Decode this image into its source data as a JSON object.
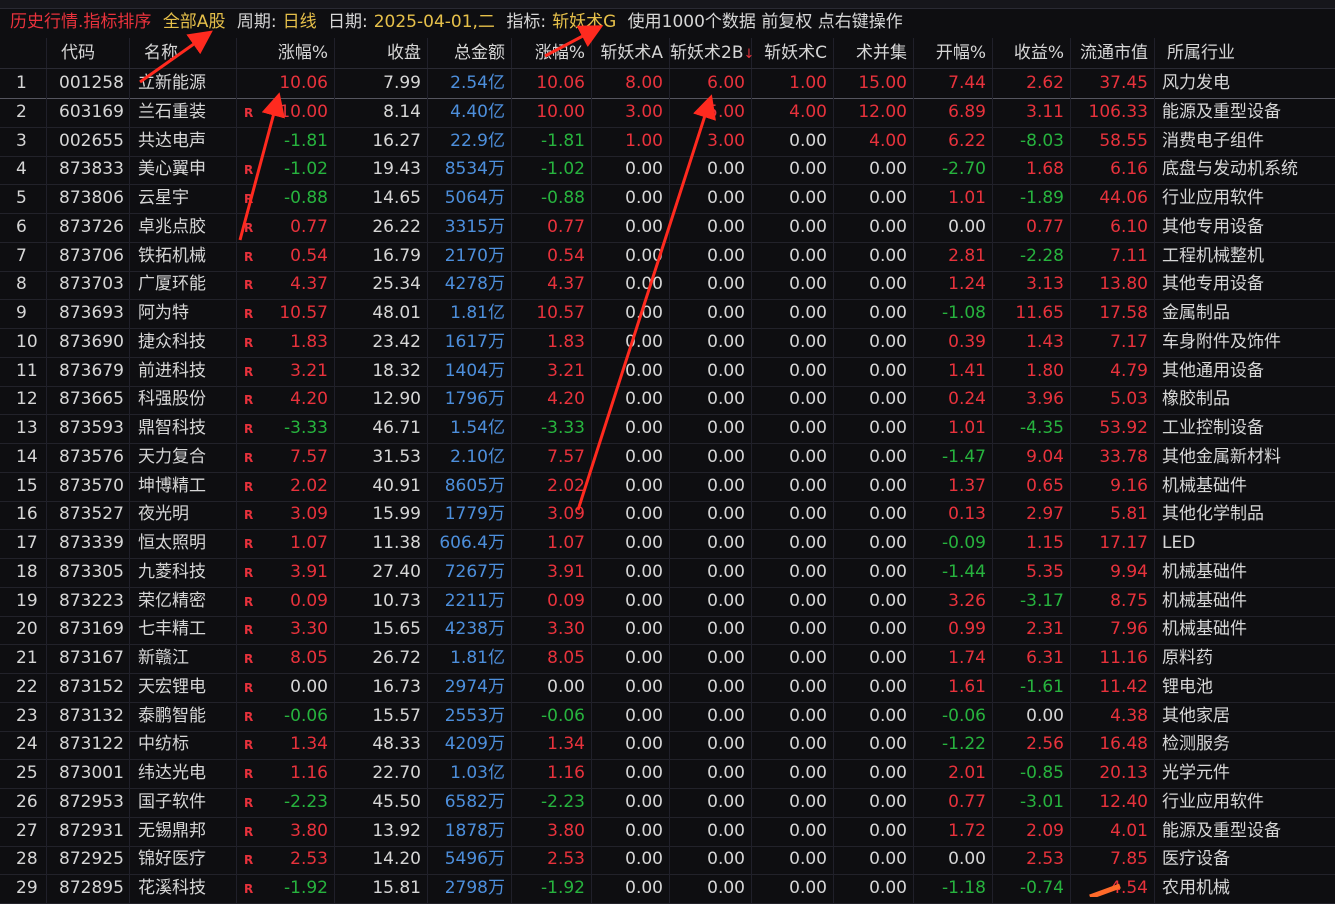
{
  "titlebar": {
    "mode": "历史行情.指标排序",
    "market": "全部A股",
    "period_label": "周期:",
    "period": "日线",
    "date_label": "日期:",
    "date": "2025-04-01,二",
    "indicator_label": "指标:",
    "indicator": "斩妖术G",
    "info": "使用1000个数据 前复权 点右键操作"
  },
  "colors": {
    "up": "#e8323c",
    "down": "#27b33e",
    "flat": "#d6d6d6",
    "amount": "#4d8fdc",
    "highlight": "#e6c04a",
    "annotation": "#ff2a1f"
  },
  "columns": [
    "",
    "代码",
    "名称",
    "涨幅%",
    "收盘",
    "总金额",
    "涨幅%",
    "斩妖术A",
    "斩妖术2B",
    "斩妖术C",
    "术并集",
    "开幅%",
    "收益%",
    "流通市值",
    "所属行业"
  ],
  "sort_indicator": "↓",
  "rows": [
    [
      "1",
      "001258",
      "立新能源",
      "",
      "10.06",
      "7.99",
      "2.54亿",
      "10.06",
      "8.00",
      "6.00",
      "1.00",
      "15.00",
      "7.44",
      "2.62",
      "37.45",
      "风力发电"
    ],
    [
      "2",
      "603169",
      "兰石重装",
      "R",
      "10.00",
      "8.14",
      "4.40亿",
      "10.00",
      "3.00",
      "5.00",
      "4.00",
      "12.00",
      "6.89",
      "3.11",
      "106.33",
      "能源及重型设备"
    ],
    [
      "3",
      "002655",
      "共达电声",
      "",
      "-1.81",
      "16.27",
      "22.9亿",
      "-1.81",
      "1.00",
      "3.00",
      "0.00",
      "4.00",
      "6.22",
      "-8.03",
      "58.55",
      "消费电子组件"
    ],
    [
      "4",
      "873833",
      "美心翼申",
      "R",
      "-1.02",
      "19.43",
      "8534万",
      "-1.02",
      "0.00",
      "0.00",
      "0.00",
      "0.00",
      "-2.70",
      "1.68",
      "6.16",
      "底盘与发动机系统"
    ],
    [
      "5",
      "873806",
      "云星宇",
      "R",
      "-0.88",
      "14.65",
      "5064万",
      "-0.88",
      "0.00",
      "0.00",
      "0.00",
      "0.00",
      "1.01",
      "-1.89",
      "44.06",
      "行业应用软件"
    ],
    [
      "6",
      "873726",
      "卓兆点胶",
      "R",
      "0.77",
      "26.22",
      "3315万",
      "0.77",
      "0.00",
      "0.00",
      "0.00",
      "0.00",
      "0.00",
      "0.77",
      "6.10",
      "其他专用设备"
    ],
    [
      "7",
      "873706",
      "铁拓机械",
      "R",
      "0.54",
      "16.79",
      "2170万",
      "0.54",
      "0.00",
      "0.00",
      "0.00",
      "0.00",
      "2.81",
      "-2.28",
      "7.11",
      "工程机械整机"
    ],
    [
      "8",
      "873703",
      "广厦环能",
      "R",
      "4.37",
      "25.34",
      "4278万",
      "4.37",
      "0.00",
      "0.00",
      "0.00",
      "0.00",
      "1.24",
      "3.13",
      "13.80",
      "其他专用设备"
    ],
    [
      "9",
      "873693",
      "阿为特",
      "R",
      "10.57",
      "48.01",
      "1.81亿",
      "10.57",
      "0.00",
      "0.00",
      "0.00",
      "0.00",
      "-1.08",
      "11.65",
      "17.58",
      "金属制品"
    ],
    [
      "10",
      "873690",
      "捷众科技",
      "R",
      "1.83",
      "23.42",
      "1617万",
      "1.83",
      "0.00",
      "0.00",
      "0.00",
      "0.00",
      "0.39",
      "1.43",
      "7.17",
      "车身附件及饰件"
    ],
    [
      "11",
      "873679",
      "前进科技",
      "R",
      "3.21",
      "18.32",
      "1404万",
      "3.21",
      "0.00",
      "0.00",
      "0.00",
      "0.00",
      "1.41",
      "1.80",
      "4.79",
      "其他通用设备"
    ],
    [
      "12",
      "873665",
      "科强股份",
      "R",
      "4.20",
      "12.90",
      "1796万",
      "4.20",
      "0.00",
      "0.00",
      "0.00",
      "0.00",
      "0.24",
      "3.96",
      "5.03",
      "橡胶制品"
    ],
    [
      "13",
      "873593",
      "鼎智科技",
      "R",
      "-3.33",
      "46.71",
      "1.54亿",
      "-3.33",
      "0.00",
      "0.00",
      "0.00",
      "0.00",
      "1.01",
      "-4.35",
      "53.92",
      "工业控制设备"
    ],
    [
      "14",
      "873576",
      "天力复合",
      "R",
      "7.57",
      "31.53",
      "2.10亿",
      "7.57",
      "0.00",
      "0.00",
      "0.00",
      "0.00",
      "-1.47",
      "9.04",
      "33.78",
      "其他金属新材料"
    ],
    [
      "15",
      "873570",
      "坤博精工",
      "R",
      "2.02",
      "40.91",
      "8605万",
      "2.02",
      "0.00",
      "0.00",
      "0.00",
      "0.00",
      "1.37",
      "0.65",
      "9.16",
      "机械基础件"
    ],
    [
      "16",
      "873527",
      "夜光明",
      "R",
      "3.09",
      "15.99",
      "1779万",
      "3.09",
      "0.00",
      "0.00",
      "0.00",
      "0.00",
      "0.13",
      "2.97",
      "5.81",
      "其他化学制品"
    ],
    [
      "17",
      "873339",
      "恒太照明",
      "R",
      "1.07",
      "11.38",
      "606.4万",
      "1.07",
      "0.00",
      "0.00",
      "0.00",
      "0.00",
      "-0.09",
      "1.15",
      "17.17",
      "LED"
    ],
    [
      "18",
      "873305",
      "九菱科技",
      "R",
      "3.91",
      "27.40",
      "7267万",
      "3.91",
      "0.00",
      "0.00",
      "0.00",
      "0.00",
      "-1.44",
      "5.35",
      "9.94",
      "机械基础件"
    ],
    [
      "19",
      "873223",
      "荣亿精密",
      "R",
      "0.09",
      "10.73",
      "2211万",
      "0.09",
      "0.00",
      "0.00",
      "0.00",
      "0.00",
      "3.26",
      "-3.17",
      "8.75",
      "机械基础件"
    ],
    [
      "20",
      "873169",
      "七丰精工",
      "R",
      "3.30",
      "15.65",
      "4238万",
      "3.30",
      "0.00",
      "0.00",
      "0.00",
      "0.00",
      "0.99",
      "2.31",
      "7.96",
      "机械基础件"
    ],
    [
      "21",
      "873167",
      "新赣江",
      "R",
      "8.05",
      "26.72",
      "1.81亿",
      "8.05",
      "0.00",
      "0.00",
      "0.00",
      "0.00",
      "1.74",
      "6.31",
      "11.16",
      "原料药"
    ],
    [
      "22",
      "873152",
      "天宏锂电",
      "R",
      "0.00",
      "16.73",
      "2974万",
      "0.00",
      "0.00",
      "0.00",
      "0.00",
      "0.00",
      "1.61",
      "-1.61",
      "11.42",
      "锂电池"
    ],
    [
      "23",
      "873132",
      "泰鹏智能",
      "R",
      "-0.06",
      "15.57",
      "2553万",
      "-0.06",
      "0.00",
      "0.00",
      "0.00",
      "0.00",
      "-0.06",
      "0.00",
      "4.38",
      "其他家居"
    ],
    [
      "24",
      "873122",
      "中纺标",
      "R",
      "1.34",
      "48.33",
      "4209万",
      "1.34",
      "0.00",
      "0.00",
      "0.00",
      "0.00",
      "-1.22",
      "2.56",
      "16.48",
      "检测服务"
    ],
    [
      "25",
      "873001",
      "纬达光电",
      "R",
      "1.16",
      "22.70",
      "1.03亿",
      "1.16",
      "0.00",
      "0.00",
      "0.00",
      "0.00",
      "2.01",
      "-0.85",
      "20.13",
      "光学元件"
    ],
    [
      "26",
      "872953",
      "国子软件",
      "R",
      "-2.23",
      "45.50",
      "6582万",
      "-2.23",
      "0.00",
      "0.00",
      "0.00",
      "0.00",
      "0.77",
      "-3.01",
      "12.40",
      "行业应用软件"
    ],
    [
      "27",
      "872931",
      "无锡鼎邦",
      "R",
      "3.80",
      "13.92",
      "1878万",
      "3.80",
      "0.00",
      "0.00",
      "0.00",
      "0.00",
      "1.72",
      "2.09",
      "4.01",
      "能源及重型设备"
    ],
    [
      "28",
      "872925",
      "锦好医疗",
      "R",
      "2.53",
      "14.20",
      "5496万",
      "2.53",
      "0.00",
      "0.00",
      "0.00",
      "0.00",
      "0.00",
      "2.53",
      "7.85",
      "医疗设备"
    ],
    [
      "29",
      "872895",
      "花溪科技",
      "R",
      "-1.92",
      "15.81",
      "2798万",
      "-1.92",
      "0.00",
      "0.00",
      "0.00",
      "0.00",
      "-1.18",
      "-0.74",
      "4.54",
      "农用机械"
    ]
  ]
}
